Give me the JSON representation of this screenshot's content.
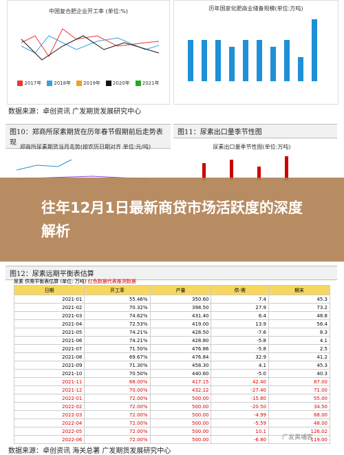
{
  "top_left_chart": {
    "title": "中国复合肥企业开工率 (单位:%)",
    "legend": [
      "2017年",
      "2018年",
      "2019年",
      "2020年",
      "2021年"
    ]
  },
  "top_right_chart": {
    "title": "历年国家化肥商业储备规模(单位:万吨)"
  },
  "source_1": "数据来源：卓创资讯   广发期货发展研究中心",
  "figure_10": {
    "caption": "图10：郑商所尿素期货在历年春节假期前后走势表现",
    "title": "郑商所尿素期货当月走势(按农历日期对齐 单位:元/吨)"
  },
  "figure_11": {
    "caption": "图11：尿素出口量季节性图",
    "title": "尿素出口量季节性图(单位:万吨)"
  },
  "banner": {
    "title": "往年12月1日最新商贷市场活跃度的深度解析"
  },
  "figure_12": {
    "caption": "图12：尿素远期平衡表估算",
    "table_title": "尿素 供需平衡表估算 (单位: 万吨)",
    "table_note": "红色数据代表推测数据",
    "header": [
      "日期",
      "开工率",
      "产量",
      "供-需",
      "期末"
    ],
    "rows": [
      [
        "2021-01",
        "55.46%",
        "350.60",
        "7.4",
        "45.3"
      ],
      [
        "2021-02",
        "70.32%",
        "398.50",
        "27.9",
        "73.2"
      ],
      [
        "2021-03",
        "74.62%",
        "431.40",
        "6.4",
        "48.8"
      ],
      [
        "2021-04",
        "72.53%",
        "419.00",
        "13.9",
        "56.4"
      ],
      [
        "2021-05",
        "74.21%",
        "428.50",
        "-7.6",
        "8.3"
      ],
      [
        "2021-06",
        "74.21%",
        "428.80",
        "-5.8",
        "4.1"
      ],
      [
        "2021-07",
        "71.50%",
        "476.86",
        "-5.8",
        "2.5"
      ],
      [
        "2021-08",
        "69.67%",
        "476.84",
        "32.9",
        "41.2"
      ],
      [
        "2021-09",
        "71.30%",
        "458.30",
        "4.1",
        "45.3"
      ],
      [
        "2021-10",
        "70.50%",
        "440.60",
        "-5.0",
        "40.3"
      ],
      [
        "2021-11",
        "68.00%",
        "417.15",
        "42.40",
        "87.00"
      ],
      [
        "2021-12",
        "70.00%",
        "432.12",
        "-27.40",
        "71.00"
      ],
      [
        "2022-01",
        "72.00%",
        "500.00",
        "-15.80",
        "55.00"
      ],
      [
        "2022-02",
        "72.00%",
        "500.00",
        "-20.50",
        "34.50"
      ],
      [
        "2022-03",
        "72.00%",
        "500.00",
        "-4.99",
        "68.00"
      ],
      [
        "2022-04",
        "72.00%",
        "500.00",
        "-5.59",
        "48.00"
      ],
      [
        "2022-05",
        "72.00%",
        "500.00",
        "10.1",
        "126.02"
      ],
      [
        "2022-06",
        "72.00%",
        "500.00",
        "-6.80",
        "119.00"
      ]
    ]
  },
  "source_2": "数据来源：卓创资讯   海关总署   广发期货发展研究中心",
  "watermark": "广发黄埔客"
}
